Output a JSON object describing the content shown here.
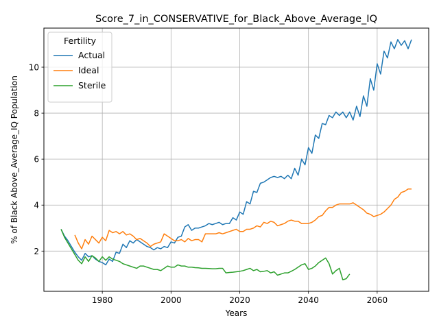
{
  "chart_data": {
    "type": "line",
    "title": "Score_7_in_CONSERVATIVE_for_Black_Above_Average_IQ",
    "xlabel": "Years",
    "ylabel": "% of Black Above_Average_IQ Population",
    "xlim": [
      1963,
      2075
    ],
    "ylim": [
      0.25,
      11.7
    ],
    "xticks": [
      1980,
      2000,
      2020,
      2040,
      2060
    ],
    "yticks": [
      2,
      4,
      6,
      8,
      10
    ],
    "grid": true,
    "legend": {
      "title": "Fertility",
      "position": "upper-left"
    },
    "series": [
      {
        "name": "Actual",
        "color": "#1f77b4",
        "x": [
          1968,
          1969,
          1970,
          1971,
          1972,
          1973,
          1974,
          1975,
          1976,
          1977,
          1978,
          1979,
          1980,
          1981,
          1982,
          1983,
          1984,
          1985,
          1986,
          1987,
          1988,
          1989,
          1990,
          1991,
          1992,
          1993,
          1994,
          1995,
          1996,
          1997,
          1998,
          1999,
          2000,
          2001,
          2002,
          2003,
          2004,
          2005,
          2006,
          2007,
          2008,
          2009,
          2010,
          2011,
          2012,
          2013,
          2014,
          2015,
          2016,
          2017,
          2018,
          2019,
          2020,
          2021,
          2022,
          2023,
          2024,
          2025,
          2026,
          2027,
          2028,
          2029,
          2030,
          2031,
          2032,
          2033,
          2034,
          2035,
          2036,
          2037,
          2038,
          2039,
          2040,
          2041,
          2042,
          2043,
          2044,
          2045,
          2046,
          2047,
          2048,
          2049,
          2050,
          2051,
          2052,
          2053,
          2054,
          2055,
          2056,
          2057,
          2058,
          2059,
          2060,
          2061,
          2062,
          2063,
          2064,
          2065,
          2066,
          2067,
          2068,
          2069,
          2070
        ],
        "values": [
          2.95,
          2.65,
          2.45,
          2.2,
          1.95,
          1.75,
          1.6,
          1.9,
          1.75,
          1.8,
          1.65,
          1.55,
          1.5,
          1.4,
          1.65,
          1.55,
          1.95,
          1.9,
          2.3,
          2.15,
          2.45,
          2.35,
          2.5,
          2.4,
          2.3,
          2.2,
          2.15,
          2.05,
          2.15,
          2.1,
          2.2,
          2.15,
          2.4,
          2.35,
          2.6,
          2.65,
          3.05,
          3.15,
          2.9,
          3.0,
          3.0,
          3.05,
          3.1,
          3.2,
          3.15,
          3.2,
          3.25,
          3.15,
          3.2,
          3.2,
          3.45,
          3.35,
          3.7,
          3.6,
          4.15,
          4.05,
          4.6,
          4.55,
          4.95,
          5.0,
          5.1,
          5.2,
          5.25,
          5.2,
          5.25,
          5.15,
          5.3,
          5.15,
          5.6,
          5.3,
          6.0,
          5.75,
          6.5,
          6.25,
          7.05,
          6.9,
          7.55,
          7.5,
          7.9,
          7.8,
          8.05,
          7.9,
          8.05,
          7.8,
          8.05,
          7.7,
          8.3,
          7.85,
          8.75,
          8.3,
          9.5,
          9.0,
          10.15,
          9.7,
          10.7,
          10.4,
          11.1,
          10.8,
          11.2,
          10.95,
          11.15,
          10.8,
          11.2
        ]
      },
      {
        "name": "Ideal",
        "color": "#ff7f0e",
        "x": [
          1972,
          1973,
          1974,
          1975,
          1976,
          1977,
          1978,
          1979,
          1980,
          1981,
          1982,
          1983,
          1984,
          1985,
          1986,
          1987,
          1988,
          1989,
          1990,
          1991,
          1992,
          1993,
          1994,
          1995,
          1996,
          1997,
          1998,
          1999,
          2000,
          2001,
          2002,
          2003,
          2004,
          2005,
          2006,
          2007,
          2008,
          2009,
          2010,
          2011,
          2012,
          2013,
          2014,
          2015,
          2016,
          2017,
          2018,
          2019,
          2020,
          2021,
          2022,
          2023,
          2024,
          2025,
          2026,
          2027,
          2028,
          2029,
          2030,
          2031,
          2032,
          2033,
          2034,
          2035,
          2036,
          2037,
          2038,
          2039,
          2040,
          2041,
          2042,
          2043,
          2044,
          2045,
          2046,
          2047,
          2048,
          2049,
          2050,
          2051,
          2052,
          2053,
          2054,
          2055,
          2056,
          2057,
          2058,
          2059,
          2060,
          2061,
          2062,
          2063,
          2064,
          2065,
          2066,
          2067,
          2068,
          2069,
          2070
        ],
        "values": [
          2.7,
          2.35,
          2.1,
          2.5,
          2.3,
          2.65,
          2.5,
          2.35,
          2.6,
          2.45,
          2.9,
          2.8,
          2.85,
          2.75,
          2.85,
          2.7,
          2.75,
          2.65,
          2.5,
          2.55,
          2.45,
          2.35,
          2.2,
          2.3,
          2.35,
          2.4,
          2.75,
          2.65,
          2.55,
          2.45,
          2.45,
          2.5,
          2.4,
          2.55,
          2.45,
          2.5,
          2.5,
          2.4,
          2.75,
          2.75,
          2.75,
          2.75,
          2.8,
          2.75,
          2.8,
          2.85,
          2.9,
          2.95,
          2.85,
          2.85,
          2.95,
          2.95,
          3.0,
          3.1,
          3.05,
          3.25,
          3.2,
          3.3,
          3.25,
          3.1,
          3.15,
          3.2,
          3.3,
          3.35,
          3.3,
          3.3,
          3.2,
          3.2,
          3.2,
          3.25,
          3.35,
          3.5,
          3.55,
          3.75,
          3.9,
          3.9,
          4.0,
          4.05,
          4.05,
          4.05,
          4.05,
          4.1,
          4.0,
          3.9,
          3.8,
          3.65,
          3.6,
          3.5,
          3.55,
          3.6,
          3.7,
          3.85,
          4.0,
          4.25,
          4.35,
          4.55,
          4.6,
          4.7,
          4.7
        ]
      },
      {
        "name": "Sterile",
        "color": "#2ca02c",
        "x": [
          1968,
          1969,
          1970,
          1971,
          1972,
          1973,
          1974,
          1975,
          1976,
          1977,
          1978,
          1979,
          1980,
          1981,
          1982,
          1983,
          1984,
          1985,
          1986,
          1987,
          1988,
          1989,
          1990,
          1991,
          1992,
          1993,
          1994,
          1995,
          1996,
          1997,
          1998,
          1999,
          2000,
          2001,
          2002,
          2003,
          2004,
          2005,
          2006,
          2007,
          2008,
          2009,
          2010,
          2011,
          2012,
          2013,
          2014,
          2015,
          2016,
          2017,
          2018,
          2019,
          2020,
          2021,
          2022,
          2023,
          2024,
          2025,
          2026,
          2027,
          2028,
          2029,
          2030,
          2031,
          2032,
          2033,
          2034,
          2035,
          2036,
          2037,
          2038,
          2039,
          2040,
          2041,
          2042,
          2043,
          2044,
          2045,
          2046,
          2047,
          2048,
          2049,
          2050,
          2051,
          2052
        ],
        "values": [
          2.95,
          2.6,
          2.35,
          2.1,
          1.85,
          1.6,
          1.45,
          1.75,
          1.55,
          1.8,
          1.7,
          1.55,
          1.75,
          1.6,
          1.75,
          1.65,
          1.6,
          1.55,
          1.45,
          1.4,
          1.35,
          1.3,
          1.25,
          1.35,
          1.35,
          1.3,
          1.25,
          1.2,
          1.2,
          1.15,
          1.25,
          1.35,
          1.3,
          1.3,
          1.4,
          1.35,
          1.35,
          1.3,
          1.3,
          1.28,
          1.27,
          1.25,
          1.25,
          1.24,
          1.23,
          1.23,
          1.25,
          1.25,
          1.05,
          1.07,
          1.08,
          1.1,
          1.12,
          1.15,
          1.2,
          1.25,
          1.15,
          1.2,
          1.1,
          1.12,
          1.15,
          1.05,
          1.1,
          0.95,
          1.0,
          1.05,
          1.05,
          1.12,
          1.2,
          1.3,
          1.4,
          1.45,
          1.2,
          1.25,
          1.35,
          1.5,
          1.6,
          1.7,
          1.45,
          1.0,
          1.15,
          1.25,
          0.75,
          0.8,
          1.0
        ]
      }
    ]
  }
}
